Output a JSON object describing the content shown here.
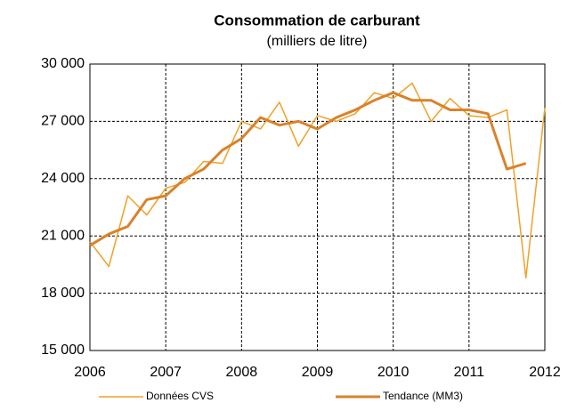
{
  "chart_data": {
    "type": "line",
    "title": "Consommation de carburant",
    "subtitle": "(milliers de litre)",
    "x": [
      2006,
      2006.25,
      2006.5,
      2006.75,
      2007,
      2007.25,
      2007.5,
      2007.75,
      2008,
      2008.25,
      2008.5,
      2008.75,
      2009,
      2009.25,
      2009.5,
      2009.75,
      2010,
      2010.25,
      2010.5,
      2010.75,
      2011,
      2011.25,
      2011.5,
      2011.75,
      2012
    ],
    "series": [
      {
        "name": "Données CVS",
        "color": "#f0a128",
        "width": 1.5,
        "values": [
          20700,
          19400,
          23100,
          22100,
          23500,
          23800,
          24900,
          24800,
          27000,
          26600,
          28000,
          25700,
          27300,
          27000,
          27400,
          28500,
          28200,
          29000,
          27000,
          28200,
          27300,
          27200,
          27600,
          18800,
          27700
        ]
      },
      {
        "name": "Tendance (MM3)",
        "color": "#d9822b",
        "width": 3,
        "values": [
          20500,
          21100,
          21500,
          22900,
          23100,
          24000,
          24500,
          25500,
          26100,
          27200,
          26800,
          27000,
          26600,
          27200,
          27600,
          28100,
          28500,
          28100,
          28100,
          27600,
          27600,
          27400,
          24500,
          24800,
          null
        ]
      }
    ],
    "xlim": [
      2006,
      2012
    ],
    "xticks": [
      2006,
      2007,
      2008,
      2009,
      2010,
      2011,
      2012
    ],
    "ylim": [
      15000,
      30000
    ],
    "yticks": [
      {
        "value": 15000,
        "label": "15 000"
      },
      {
        "value": 18000,
        "label": "18 000"
      },
      {
        "value": 21000,
        "label": "21 000"
      },
      {
        "value": 24000,
        "label": "24 000"
      },
      {
        "value": 27000,
        "label": "27 000"
      },
      {
        "value": 30000,
        "label": "30 000"
      }
    ],
    "grid": true,
    "legend": "bottom"
  }
}
